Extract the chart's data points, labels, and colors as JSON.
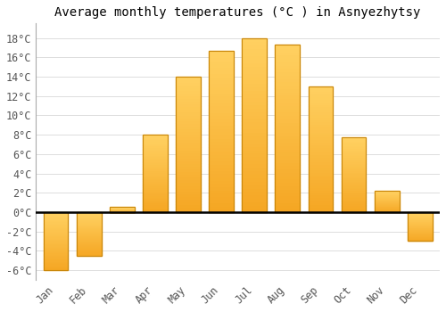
{
  "title": "Average monthly temperatures (°C ) in Asnyezhytsy",
  "months": [
    "Jan",
    "Feb",
    "Mar",
    "Apr",
    "May",
    "Jun",
    "Jul",
    "Aug",
    "Sep",
    "Oct",
    "Nov",
    "Dec"
  ],
  "values": [
    -6,
    -4.5,
    0.5,
    8,
    14,
    16.7,
    18,
    17.3,
    13,
    7.7,
    2.2,
    -3
  ],
  "bar_color_left": "#F5A623",
  "bar_color_center": "#FFD060",
  "bar_edge_color": "#C8860A",
  "background_color": "#ffffff",
  "grid_color": "#d8d8d8",
  "ylim": [
    -7,
    19.5
  ],
  "yticks": [
    -6,
    -4,
    -2,
    0,
    2,
    4,
    6,
    8,
    10,
    12,
    14,
    16,
    18
  ],
  "title_fontsize": 10,
  "tick_fontsize": 8.5
}
